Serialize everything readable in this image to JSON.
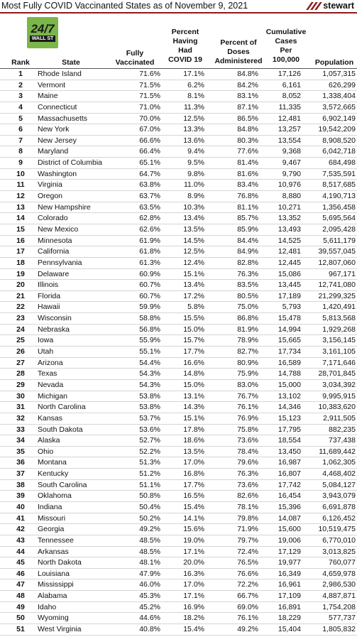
{
  "title": "Most Fully COVID Vaccinanted States as of November 9, 2021",
  "brand": {
    "name": "stewart",
    "accent_color": "#8a1c1c"
  },
  "badge": {
    "line1": "24/7",
    "line2": "WALL ST"
  },
  "headers": {
    "rank": "Rank",
    "state": "State",
    "vaccinated": [
      "Fully",
      "Vaccinated"
    ],
    "had_covid": [
      "Percent",
      "Having",
      "Had",
      "COVID 19"
    ],
    "doses": [
      "Percent of",
      "Doses",
      "Administered"
    ],
    "cases": [
      "Cumulative",
      "Cases",
      "Per",
      "100,000"
    ],
    "population": "Population"
  },
  "rows": [
    {
      "rank": "1",
      "state": "Rhode Island",
      "vaccinated": "71.6%",
      "had_covid": "17.1%",
      "doses": "84.8%",
      "cases": "17,126",
      "population": "1,057,315"
    },
    {
      "rank": "2",
      "state": "Vermont",
      "vaccinated": "71.5%",
      "had_covid": "6.2%",
      "doses": "84.2%",
      "cases": "6,161",
      "population": "626,299"
    },
    {
      "rank": "3",
      "state": "Maine",
      "vaccinated": "71.5%",
      "had_covid": "8.1%",
      "doses": "83.1%",
      "cases": "8,052",
      "population": "1,338,404"
    },
    {
      "rank": "4",
      "state": "Connecticut",
      "vaccinated": "71.0%",
      "had_covid": "11.3%",
      "doses": "87.1%",
      "cases": "11,335",
      "population": "3,572,665"
    },
    {
      "rank": "5",
      "state": "Massachusetts",
      "vaccinated": "70.0%",
      "had_covid": "12.5%",
      "doses": "86.5%",
      "cases": "12,481",
      "population": "6,902,149"
    },
    {
      "rank": "6",
      "state": "New York",
      "vaccinated": "67.0%",
      "had_covid": "13.3%",
      "doses": "84.8%",
      "cases": "13,257",
      "population": "19,542,209"
    },
    {
      "rank": "7",
      "state": "New Jersey",
      "vaccinated": "66.6%",
      "had_covid": "13.6%",
      "doses": "80.3%",
      "cases": "13,554",
      "population": "8,908,520"
    },
    {
      "rank": "8",
      "state": "Maryland",
      "vaccinated": "66.4%",
      "had_covid": "9.4%",
      "doses": "77.6%",
      "cases": "9,368",
      "population": "6,042,718"
    },
    {
      "rank": "9",
      "state": "District of Columbia",
      "vaccinated": "65.1%",
      "had_covid": "9.5%",
      "doses": "81.4%",
      "cases": "9,467",
      "population": "684,498"
    },
    {
      "rank": "10",
      "state": "Washington",
      "vaccinated": "64.7%",
      "had_covid": "9.8%",
      "doses": "81.6%",
      "cases": "9,790",
      "population": "7,535,591"
    },
    {
      "rank": "11",
      "state": "Virginia",
      "vaccinated": "63.8%",
      "had_covid": "11.0%",
      "doses": "83.4%",
      "cases": "10,976",
      "population": "8,517,685"
    },
    {
      "rank": "12",
      "state": "Oregon",
      "vaccinated": "63.7%",
      "had_covid": "8.9%",
      "doses": "76.8%",
      "cases": "8,880",
      "population": "4,190,713"
    },
    {
      "rank": "13",
      "state": "New Hampshire",
      "vaccinated": "63.5%",
      "had_covid": "10.3%",
      "doses": "81.1%",
      "cases": "10,271",
      "population": "1,356,458"
    },
    {
      "rank": "14",
      "state": "Colorado",
      "vaccinated": "62.8%",
      "had_covid": "13.4%",
      "doses": "85.7%",
      "cases": "13,352",
      "population": "5,695,564"
    },
    {
      "rank": "15",
      "state": "New Mexico",
      "vaccinated": "62.6%",
      "had_covid": "13.5%",
      "doses": "85.9%",
      "cases": "13,493",
      "population": "2,095,428"
    },
    {
      "rank": "16",
      "state": "Minnesota",
      "vaccinated": "61.9%",
      "had_covid": "14.5%",
      "doses": "84.4%",
      "cases": "14,525",
      "population": "5,611,179"
    },
    {
      "rank": "17",
      "state": "California",
      "vaccinated": "61.8%",
      "had_covid": "12.5%",
      "doses": "84.9%",
      "cases": "12,481",
      "population": "39,557,045"
    },
    {
      "rank": "18",
      "state": "Pennsylvania",
      "vaccinated": "61.3%",
      "had_covid": "12.4%",
      "doses": "82.8%",
      "cases": "12,445",
      "population": "12,807,060"
    },
    {
      "rank": "19",
      "state": "Delaware",
      "vaccinated": "60.9%",
      "had_covid": "15.1%",
      "doses": "76.3%",
      "cases": "15,086",
      "population": "967,171"
    },
    {
      "rank": "20",
      "state": "Illinois",
      "vaccinated": "60.7%",
      "had_covid": "13.4%",
      "doses": "83.5%",
      "cases": "13,445",
      "population": "12,741,080"
    },
    {
      "rank": "21",
      "state": "Florida",
      "vaccinated": "60.7%",
      "had_covid": "17.2%",
      "doses": "80.5%",
      "cases": "17,189",
      "population": "21,299,325"
    },
    {
      "rank": "22",
      "state": "Hawaii",
      "vaccinated": "59.9%",
      "had_covid": "5.8%",
      "doses": "75.0%",
      "cases": "5,793",
      "population": "1,420,491"
    },
    {
      "rank": "23",
      "state": "Wisconsin",
      "vaccinated": "58.8%",
      "had_covid": "15.5%",
      "doses": "86.8%",
      "cases": "15,478",
      "population": "5,813,568"
    },
    {
      "rank": "24",
      "state": "Nebraska",
      "vaccinated": "56.8%",
      "had_covid": "15.0%",
      "doses": "81.9%",
      "cases": "14,994",
      "population": "1,929,268"
    },
    {
      "rank": "25",
      "state": "Iowa",
      "vaccinated": "55.9%",
      "had_covid": "15.7%",
      "doses": "78.9%",
      "cases": "15,665",
      "population": "3,156,145"
    },
    {
      "rank": "26",
      "state": "Utah",
      "vaccinated": "55.1%",
      "had_covid": "17.7%",
      "doses": "82.7%",
      "cases": "17,734",
      "population": "3,161,105"
    },
    {
      "rank": "27",
      "state": "Arizona",
      "vaccinated": "54.4%",
      "had_covid": "16.6%",
      "doses": "80.9%",
      "cases": "16,589",
      "population": "7,171,646"
    },
    {
      "rank": "28",
      "state": "Texas",
      "vaccinated": "54.3%",
      "had_covid": "14.8%",
      "doses": "75.9%",
      "cases": "14,788",
      "population": "28,701,845"
    },
    {
      "rank": "29",
      "state": "Nevada",
      "vaccinated": "54.3%",
      "had_covid": "15.0%",
      "doses": "83.0%",
      "cases": "15,000",
      "population": "3,034,392"
    },
    {
      "rank": "30",
      "state": "Michigan",
      "vaccinated": "53.8%",
      "had_covid": "13.1%",
      "doses": "76.7%",
      "cases": "13,102",
      "population": "9,995,915"
    },
    {
      "rank": "31",
      "state": "North Carolina",
      "vaccinated": "53.8%",
      "had_covid": "14.3%",
      "doses": "76.1%",
      "cases": "14,346",
      "population": "10,383,620"
    },
    {
      "rank": "32",
      "state": "Kansas",
      "vaccinated": "53.7%",
      "had_covid": "15.1%",
      "doses": "76.9%",
      "cases": "15,123",
      "population": "2,911,505"
    },
    {
      "rank": "33",
      "state": "South Dakota",
      "vaccinated": "53.6%",
      "had_covid": "17.8%",
      "doses": "75.8%",
      "cases": "17,795",
      "population": "882,235"
    },
    {
      "rank": "34",
      "state": "Alaska",
      "vaccinated": "52.7%",
      "had_covid": "18.6%",
      "doses": "73.6%",
      "cases": "18,554",
      "population": "737,438"
    },
    {
      "rank": "35",
      "state": "Ohio",
      "vaccinated": "52.2%",
      "had_covid": "13.5%",
      "doses": "78.4%",
      "cases": "13,450",
      "population": "11,689,442"
    },
    {
      "rank": "36",
      "state": "Montana",
      "vaccinated": "51.3%",
      "had_covid": "17.0%",
      "doses": "79.6%",
      "cases": "16,987",
      "population": "1,062,305"
    },
    {
      "rank": "37",
      "state": "Kentucky",
      "vaccinated": "51.2%",
      "had_covid": "16.8%",
      "doses": "76.3%",
      "cases": "16,807",
      "population": "4,468,402"
    },
    {
      "rank": "38",
      "state": "South Carolina",
      "vaccinated": "51.1%",
      "had_covid": "17.7%",
      "doses": "73.6%",
      "cases": "17,742",
      "population": "5,084,127"
    },
    {
      "rank": "39",
      "state": "Oklahoma",
      "vaccinated": "50.8%",
      "had_covid": "16.5%",
      "doses": "82.6%",
      "cases": "16,454",
      "population": "3,943,079"
    },
    {
      "rank": "40",
      "state": "Indiana",
      "vaccinated": "50.4%",
      "had_covid": "15.4%",
      "doses": "78.1%",
      "cases": "15,396",
      "population": "6,691,878"
    },
    {
      "rank": "41",
      "state": "Missouri",
      "vaccinated": "50.2%",
      "had_covid": "14.1%",
      "doses": "79.8%",
      "cases": "14,087",
      "population": "6,126,452"
    },
    {
      "rank": "42",
      "state": "Georgia",
      "vaccinated": "49.2%",
      "had_covid": "15.6%",
      "doses": "71.9%",
      "cases": "15,600",
      "population": "10,519,475"
    },
    {
      "rank": "43",
      "state": "Tennessee",
      "vaccinated": "48.5%",
      "had_covid": "19.0%",
      "doses": "79.7%",
      "cases": "19,006",
      "population": "6,770,010"
    },
    {
      "rank": "44",
      "state": "Arkansas",
      "vaccinated": "48.5%",
      "had_covid": "17.1%",
      "doses": "72.4%",
      "cases": "17,129",
      "population": "3,013,825"
    },
    {
      "rank": "45",
      "state": "North Dakota",
      "vaccinated": "48.1%",
      "had_covid": "20.0%",
      "doses": "76.5%",
      "cases": "19,977",
      "population": "760,077"
    },
    {
      "rank": "46",
      "state": "Louisiana",
      "vaccinated": "47.9%",
      "had_covid": "16.3%",
      "doses": "76.6%",
      "cases": "16,349",
      "population": "4,659,978"
    },
    {
      "rank": "47",
      "state": "Mississippi",
      "vaccinated": "46.0%",
      "had_covid": "17.0%",
      "doses": "72.2%",
      "cases": "16,961",
      "population": "2,986,530"
    },
    {
      "rank": "48",
      "state": "Alabama",
      "vaccinated": "45.3%",
      "had_covid": "17.1%",
      "doses": "66.7%",
      "cases": "17,109",
      "population": "4,887,871"
    },
    {
      "rank": "49",
      "state": "Idaho",
      "vaccinated": "45.2%",
      "had_covid": "16.9%",
      "doses": "69.0%",
      "cases": "16,891",
      "population": "1,754,208"
    },
    {
      "rank": "50",
      "state": "Wyoming",
      "vaccinated": "44.6%",
      "had_covid": "18.2%",
      "doses": "76.1%",
      "cases": "18,229",
      "population": "577,737"
    },
    {
      "rank": "51",
      "state": "West Virginia",
      "vaccinated": "40.8%",
      "had_covid": "15.4%",
      "doses": "49.2%",
      "cases": "15,404",
      "population": "1,805,832"
    }
  ]
}
